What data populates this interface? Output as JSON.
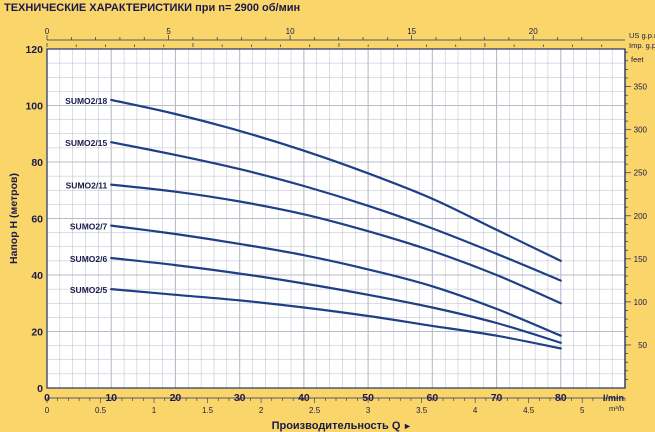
{
  "chart_data": {
    "type": "line",
    "title": "ТЕХНИЧЕСКИЕ ХАРАКТЕРИСТИКИ при n= 2900 об/мин",
    "ylabel": "Напор H  (метров)",
    "xlabel": "Производительность  Q",
    "xlabel_arrow": "►",
    "x_unit": "l/min",
    "ylim": [
      0,
      120
    ],
    "xlim": [
      0,
      90
    ],
    "grid": true,
    "y_ticks": [
      "0",
      "20",
      "40",
      "60",
      "80",
      "100",
      "120"
    ],
    "x_ticks": [
      "0",
      "10",
      "20",
      "30",
      "40",
      "50",
      "60",
      "70",
      "80"
    ],
    "axis_bottom_m3h": {
      "unit": "m³/h",
      "ticks": [
        "0",
        "0.5",
        "1",
        "1.5",
        "2",
        "2.5",
        "3",
        "3.5",
        "4",
        "4.5",
        "5"
      ]
    },
    "axis_top_usgpm": {
      "unit": "US g.p.m.",
      "ticks": [
        "0",
        "5",
        "10",
        "15",
        "20"
      ]
    },
    "axis_top_impgpm": {
      "unit": "Imp. g.p.m.",
      "ticks": [
        "0",
        "5",
        "10",
        "15"
      ]
    },
    "axis_right_feet": {
      "unit": "feet",
      "ticks": [
        "50",
        "100",
        "150",
        "200",
        "250",
        "300",
        "350"
      ]
    },
    "series": [
      {
        "name": "SUMO2/18",
        "x": [
          10,
          20,
          30,
          40,
          50,
          60,
          70,
          80
        ],
        "y": [
          102,
          97,
          91,
          84,
          76,
          67,
          56,
          45
        ]
      },
      {
        "name": "SUMO2/15",
        "x": [
          10,
          20,
          30,
          40,
          50,
          60,
          70,
          80
        ],
        "y": [
          87,
          82.5,
          77.5,
          71.5,
          64.5,
          56.5,
          47.5,
          38
        ]
      },
      {
        "name": "SUMO2/11",
        "x": [
          10,
          20,
          30,
          40,
          50,
          60,
          70,
          80
        ],
        "y": [
          72,
          69.5,
          66,
          61.5,
          55.5,
          48.5,
          40,
          30
        ]
      },
      {
        "name": "SUMO2/7",
        "x": [
          10,
          20,
          30,
          40,
          50,
          60,
          70,
          80
        ],
        "y": [
          57.5,
          54.5,
          51,
          47,
          42,
          36,
          28,
          18.5
        ]
      },
      {
        "name": "SUMO2/6",
        "x": [
          10,
          20,
          30,
          40,
          50,
          60,
          70,
          80
        ],
        "y": [
          46,
          43.5,
          40.5,
          37,
          33,
          28.5,
          23,
          16
        ]
      },
      {
        "name": "SUMO2/5",
        "x": [
          10,
          20,
          30,
          40,
          50,
          60,
          70,
          80
        ],
        "y": [
          35,
          33,
          31,
          28.5,
          25.5,
          22,
          18.5,
          14
        ]
      }
    ],
    "colors": {
      "background": "#f9d56a",
      "plot": "#ffffff",
      "grid": "#b8bcc8",
      "curve": "#1f3f86",
      "text": "#1a1a4a",
      "axis": "#223366"
    }
  }
}
